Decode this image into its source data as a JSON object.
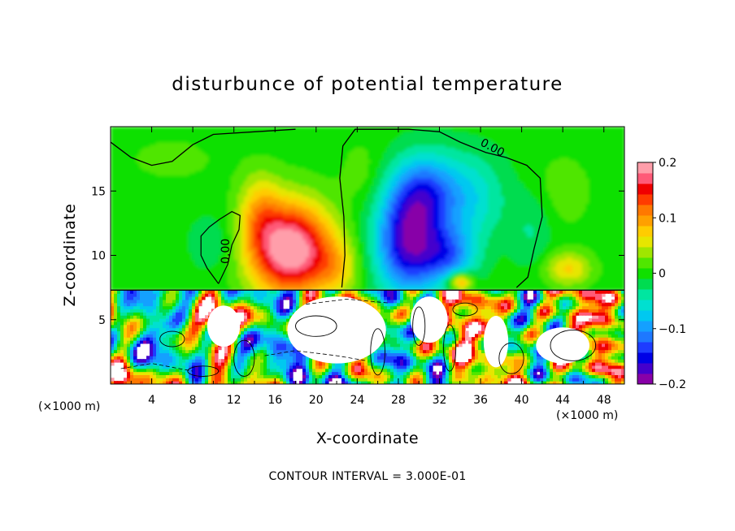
{
  "chart_data": {
    "type": "heatmap",
    "title": "disturbunce of potential temperature",
    "xlabel": "X-coordinate",
    "ylabel": "Z-coordinate",
    "x_unit": "(×1000 m)",
    "x_unit_right": "(×1000 m)",
    "xlim": [
      0,
      50
    ],
    "ylim": [
      0,
      20
    ],
    "x_ticks": [
      4,
      8,
      12,
      16,
      20,
      24,
      28,
      32,
      36,
      40,
      44,
      48
    ],
    "y_ticks": [
      5,
      10,
      15
    ],
    "colorbar": {
      "range": [
        -0.2,
        0.2
      ],
      "ticks": [
        {
          "value": 0.2,
          "label": "0.2"
        },
        {
          "value": 0.1,
          "label": "0.1"
        },
        {
          "value": 0.0,
          "label": "0"
        },
        {
          "value": -0.1,
          "label": "−0.1"
        },
        {
          "value": -0.2,
          "label": "−0.2"
        }
      ],
      "colors": [
        "#8800a8",
        "#4400cc",
        "#0000e6",
        "#1e3cff",
        "#1e78ff",
        "#14a0ff",
        "#00c8f0",
        "#00e0d0",
        "#00e6a0",
        "#00dc50",
        "#10e000",
        "#50e600",
        "#a0e600",
        "#e6e600",
        "#ffcc00",
        "#ffa000",
        "#ff7800",
        "#ff3c00",
        "#f00000",
        "#ff5a78",
        "#ff9eaa"
      ]
    },
    "contour_labels": [
      "0.00",
      "0.00"
    ],
    "contour_interval_text": "CONTOUR INTERVAL = 3.000E-01"
  }
}
